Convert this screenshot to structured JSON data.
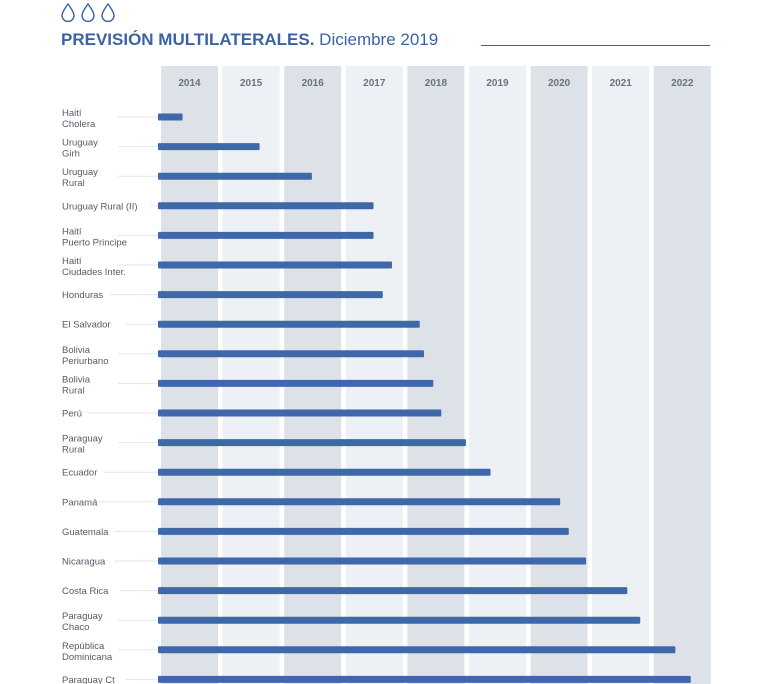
{
  "header": {
    "icons": [
      "water-drop-icon",
      "water-drop-icon",
      "water-drop-icon"
    ],
    "title_bold": "PREVISIÓN MULTILATERALES.",
    "title_rest": " Diciembre 2019"
  },
  "colors": {
    "accent": "#3a63a6",
    "bar": "#3f68ab",
    "col_dark": "#dde2e9",
    "col_light": "#edf0f4",
    "label": "#555b66"
  },
  "chart_data": {
    "type": "bar",
    "orientation": "horizontal",
    "title": "PREVISIÓN MULTILATERALES. Diciembre 2019",
    "xlabel": "",
    "ylabel": "",
    "x_ticks": [
      "2014",
      "2015",
      "2016",
      "2017",
      "2018",
      "2019",
      "2020",
      "2021",
      "2022"
    ],
    "xlim": [
      2014,
      2023
    ],
    "start": 2014,
    "grid": "alternating column bands",
    "categories": [
      [
        "Haití",
        "Cholera"
      ],
      [
        "Uruguay",
        "Girh"
      ],
      [
        "Uruguay",
        "Rural"
      ],
      [
        "Uruguay Rural (II)"
      ],
      [
        "Haití",
        "Puerto Principe"
      ],
      [
        "Haití",
        "Ciudades Inter."
      ],
      [
        "Honduras"
      ],
      [
        "El Salvador"
      ],
      [
        "Bolivia",
        "Periurbano"
      ],
      [
        "Bolivia",
        "Rural"
      ],
      [
        "Perú"
      ],
      [
        "Paraguay",
        "Rural"
      ],
      [
        "Ecuador"
      ],
      [
        "Panamá"
      ],
      [
        "Guatemala"
      ],
      [
        "Nicaragua"
      ],
      [
        "Costa Rica"
      ],
      [
        "Paraguay",
        "Chaco"
      ],
      [
        "República",
        "Dominicana"
      ],
      [
        "Paraguay Ct"
      ]
    ],
    "values": [
      2014.35,
      2015.6,
      2016.45,
      2017.45,
      2017.45,
      2017.75,
      2017.6,
      2018.2,
      2018.27,
      2018.42,
      2018.55,
      2018.95,
      2019.35,
      2020.48,
      2020.62,
      2020.9,
      2021.57,
      2021.78,
      2022.35,
      2022.6
    ]
  }
}
